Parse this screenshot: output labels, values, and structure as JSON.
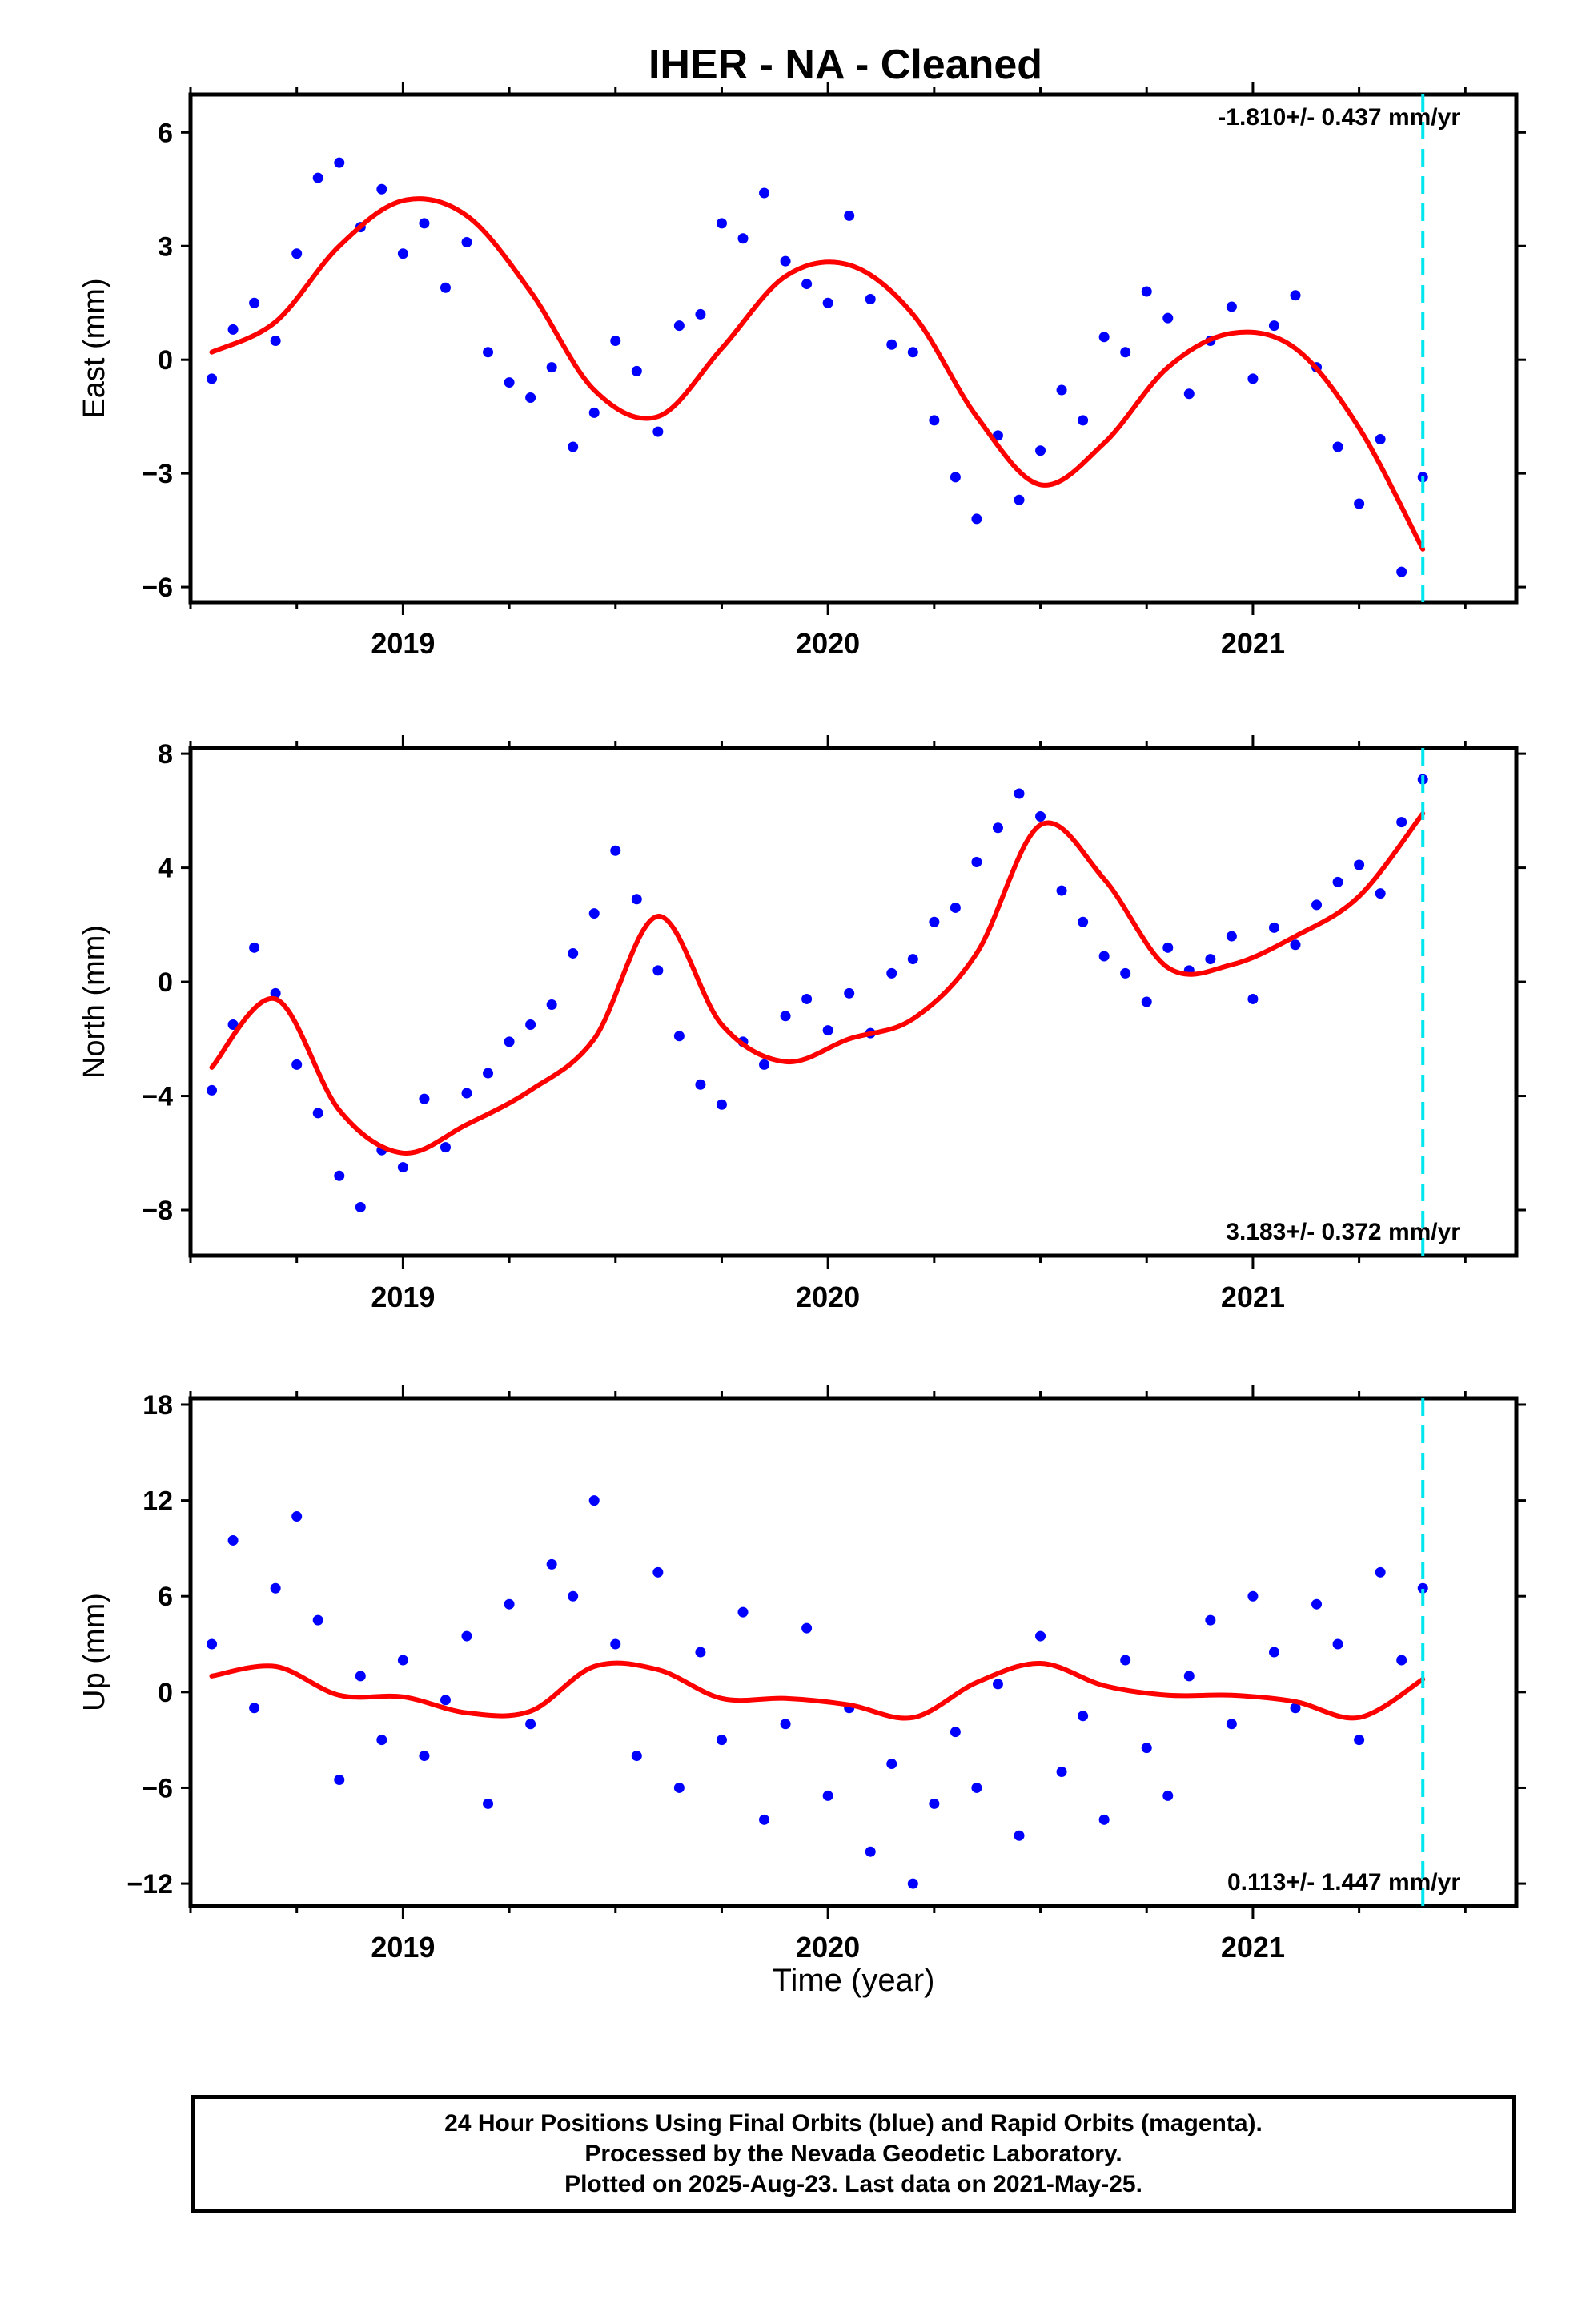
{
  "figure": {
    "title": "IHER  - NA - Cleaned",
    "xlabel": "Time (year)",
    "footer": [
      "24 Hour Positions Using Final Orbits (blue) and Rapid Orbits (magenta).",
      "Processed by the Nevada Geodetic Laboratory.",
      "Plotted on 2025-Aug-23. Last data on 2021-May-25."
    ]
  },
  "chart_data": [
    {
      "type": "scatter",
      "panel": "east",
      "ylabel": "East (mm)",
      "xlim": [
        2018.5,
        2021.62
      ],
      "ylim": [
        -6.4,
        7.0
      ],
      "yticks": [
        -6,
        -3,
        0,
        3,
        6
      ],
      "xticks": [
        "2019",
        "2020",
        "2021"
      ],
      "rate_label": "-1.810+/- 0.437 mm/yr",
      "rate_position": "top-right",
      "colors": {
        "points": "#0000ff",
        "fit": "#ff0000",
        "last_data": "#00e5ee"
      },
      "last_data_x": 2021.4,
      "fit": {
        "x": [
          2018.55,
          2018.7,
          2018.85,
          2019.0,
          2019.15,
          2019.3,
          2019.45,
          2019.6,
          2019.75,
          2019.9,
          2020.05,
          2020.2,
          2020.35,
          2020.5,
          2020.65,
          2020.8,
          2020.95,
          2021.1,
          2021.25,
          2021.4
        ],
        "y": [
          0.2,
          1.0,
          3.0,
          4.2,
          3.8,
          1.8,
          -0.8,
          -1.5,
          0.3,
          2.2,
          2.5,
          1.2,
          -1.5,
          -3.3,
          -2.2,
          -0.2,
          0.7,
          0.3,
          -1.8,
          -5.0
        ]
      },
      "points": {
        "x": [
          2018.55,
          2018.6,
          2018.65,
          2018.7,
          2018.75,
          2018.8,
          2018.85,
          2018.9,
          2018.95,
          2019.0,
          2019.05,
          2019.1,
          2019.15,
          2019.2,
          2019.25,
          2019.3,
          2019.35,
          2019.4,
          2019.45,
          2019.5,
          2019.55,
          2019.6,
          2019.65,
          2019.7,
          2019.75,
          2019.8,
          2019.85,
          2019.9,
          2019.95,
          2020.0,
          2020.05,
          2020.1,
          2020.15,
          2020.2,
          2020.25,
          2020.3,
          2020.35,
          2020.4,
          2020.45,
          2020.5,
          2020.55,
          2020.6,
          2020.65,
          2020.7,
          2020.75,
          2020.8,
          2020.85,
          2020.9,
          2020.95,
          2021.0,
          2021.05,
          2021.1,
          2021.15,
          2021.2,
          2021.25,
          2021.3,
          2021.35,
          2021.4
        ],
        "y": [
          -0.5,
          0.8,
          1.5,
          0.5,
          2.8,
          4.8,
          5.2,
          3.5,
          4.5,
          2.8,
          3.6,
          1.9,
          3.1,
          0.2,
          -0.6,
          -1.0,
          -0.2,
          -2.3,
          -1.4,
          0.5,
          -0.3,
          -1.9,
          0.9,
          1.2,
          3.6,
          3.2,
          4.4,
          2.6,
          2.0,
          1.5,
          3.8,
          1.6,
          0.4,
          0.2,
          -1.6,
          -3.1,
          -4.2,
          -2.0,
          -3.7,
          -2.4,
          -0.8,
          -1.6,
          0.6,
          0.2,
          1.8,
          1.1,
          -0.9,
          0.5,
          1.4,
          -0.5,
          0.9,
          1.7,
          -0.2,
          -2.3,
          -3.8,
          -2.1,
          -5.6,
          -3.1
        ]
      }
    },
    {
      "type": "scatter",
      "panel": "north",
      "ylabel": "North (mm)",
      "xlim": [
        2018.5,
        2021.62
      ],
      "ylim": [
        -9.6,
        8.2
      ],
      "yticks": [
        -8,
        -4,
        0,
        4,
        8
      ],
      "xticks": [
        "2019",
        "2020",
        "2021"
      ],
      "rate_label": "3.183+/- 0.372 mm/yr",
      "rate_position": "bottom-right",
      "colors": {
        "points": "#0000ff",
        "fit": "#ff0000",
        "last_data": "#00e5ee"
      },
      "last_data_x": 2021.4,
      "fit": {
        "x": [
          2018.55,
          2018.7,
          2018.85,
          2019.0,
          2019.15,
          2019.3,
          2019.45,
          2019.6,
          2019.75,
          2019.9,
          2020.05,
          2020.2,
          2020.35,
          2020.5,
          2020.65,
          2020.8,
          2020.95,
          2021.1,
          2021.25,
          2021.4
        ],
        "y": [
          -3.0,
          -0.6,
          -4.5,
          -6.0,
          -5.0,
          -3.8,
          -2.0,
          2.3,
          -1.5,
          -2.8,
          -2.0,
          -1.3,
          1.0,
          5.5,
          3.6,
          0.5,
          0.6,
          1.6,
          3.0,
          5.9
        ]
      },
      "points": {
        "x": [
          2018.55,
          2018.6,
          2018.65,
          2018.7,
          2018.75,
          2018.8,
          2018.85,
          2018.9,
          2018.95,
          2019.0,
          2019.05,
          2019.1,
          2019.15,
          2019.2,
          2019.25,
          2019.3,
          2019.35,
          2019.4,
          2019.45,
          2019.5,
          2019.55,
          2019.6,
          2019.65,
          2019.7,
          2019.75,
          2019.8,
          2019.85,
          2019.9,
          2019.95,
          2020.0,
          2020.05,
          2020.1,
          2020.15,
          2020.2,
          2020.25,
          2020.3,
          2020.35,
          2020.4,
          2020.45,
          2020.5,
          2020.55,
          2020.6,
          2020.65,
          2020.7,
          2020.75,
          2020.8,
          2020.85,
          2020.9,
          2020.95,
          2021.0,
          2021.05,
          2021.1,
          2021.15,
          2021.2,
          2021.25,
          2021.3,
          2021.35,
          2021.4
        ],
        "y": [
          -3.8,
          -1.5,
          1.2,
          -0.4,
          -2.9,
          -4.6,
          -6.8,
          -7.9,
          -5.9,
          -6.5,
          -4.1,
          -5.8,
          -3.9,
          -3.2,
          -2.1,
          -1.5,
          -0.8,
          1.0,
          2.4,
          4.6,
          2.9,
          0.4,
          -1.9,
          -3.6,
          -4.3,
          -2.1,
          -2.9,
          -1.2,
          -0.6,
          -1.7,
          -0.4,
          -1.8,
          0.3,
          0.8,
          2.1,
          2.6,
          4.2,
          5.4,
          6.6,
          5.8,
          3.2,
          2.1,
          0.9,
          0.3,
          -0.7,
          1.2,
          0.4,
          0.8,
          1.6,
          -0.6,
          1.9,
          1.3,
          2.7,
          3.5,
          4.1,
          3.1,
          5.6,
          7.1
        ]
      }
    },
    {
      "type": "scatter",
      "panel": "up",
      "ylabel": "Up (mm)",
      "xlim": [
        2018.5,
        2021.62
      ],
      "ylim": [
        -13.4,
        18.4
      ],
      "yticks": [
        -12,
        -6,
        0,
        6,
        12,
        18
      ],
      "xticks": [
        "2019",
        "2020",
        "2021"
      ],
      "rate_label": "0.113+/- 1.447 mm/yr",
      "rate_position": "bottom-right",
      "colors": {
        "points": "#0000ff",
        "fit": "#ff0000",
        "last_data": "#00e5ee"
      },
      "last_data_x": 2021.4,
      "fit": {
        "x": [
          2018.55,
          2018.7,
          2018.85,
          2019.0,
          2019.15,
          2019.3,
          2019.45,
          2019.6,
          2019.75,
          2019.9,
          2020.05,
          2020.2,
          2020.35,
          2020.5,
          2020.65,
          2020.8,
          2020.95,
          2021.1,
          2021.25,
          2021.4
        ],
        "y": [
          1.0,
          1.6,
          -0.2,
          -0.3,
          -1.3,
          -1.2,
          1.6,
          1.4,
          -0.4,
          -0.4,
          -0.8,
          -1.6,
          0.6,
          1.8,
          0.4,
          -0.2,
          -0.2,
          -0.6,
          -1.6,
          0.8
        ]
      },
      "points": {
        "x": [
          2018.55,
          2018.6,
          2018.65,
          2018.7,
          2018.75,
          2018.8,
          2018.85,
          2018.9,
          2018.95,
          2019.0,
          2019.05,
          2019.1,
          2019.15,
          2019.2,
          2019.25,
          2019.3,
          2019.35,
          2019.4,
          2019.45,
          2019.5,
          2019.55,
          2019.6,
          2019.65,
          2019.7,
          2019.75,
          2019.8,
          2019.85,
          2019.9,
          2019.95,
          2020.0,
          2020.05,
          2020.1,
          2020.15,
          2020.2,
          2020.25,
          2020.3,
          2020.35,
          2020.4,
          2020.45,
          2020.5,
          2020.55,
          2020.6,
          2020.65,
          2020.7,
          2020.75,
          2020.8,
          2020.85,
          2020.9,
          2020.95,
          2021.0,
          2021.05,
          2021.1,
          2021.15,
          2021.2,
          2021.25,
          2021.3,
          2021.35,
          2021.4
        ],
        "y": [
          3.0,
          9.5,
          -1.0,
          6.5,
          11.0,
          4.5,
          -5.5,
          1.0,
          -3.0,
          2.0,
          -4.0,
          -0.5,
          3.5,
          -7.0,
          5.5,
          -2.0,
          8.0,
          6.0,
          12.0,
          3.0,
          -4.0,
          7.5,
          -6.0,
          2.5,
          -3.0,
          5.0,
          -8.0,
          -2.0,
          4.0,
          -6.5,
          -1.0,
          -10.0,
          -4.5,
          -12.0,
          -7.0,
          -2.5,
          -6.0,
          0.5,
          -9.0,
          3.5,
          -5.0,
          -1.5,
          -8.0,
          2.0,
          -3.5,
          -6.5,
          1.0,
          4.5,
          -2.0,
          6.0,
          2.5,
          -1.0,
          5.5,
          3.0,
          -3.0,
          7.5,
          2.0,
          6.5
        ]
      }
    }
  ]
}
